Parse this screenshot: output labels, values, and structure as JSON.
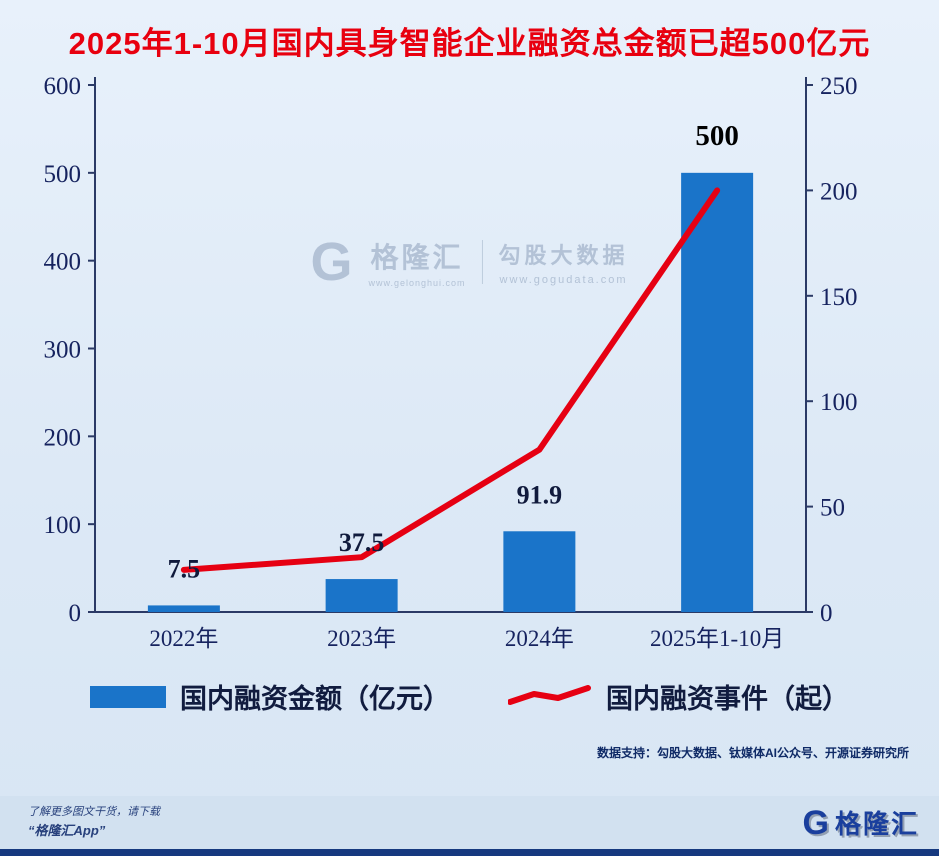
{
  "title": "2025年1-10月国内具身智能企业融资总金额已超500亿元",
  "chart_data": {
    "type": "bar+line",
    "title": "2025年1-10月国内具身智能企业融资总金额已超500亿元",
    "categories": [
      "2022年",
      "2023年",
      "2024年",
      "2025年1-10月"
    ],
    "series": [
      {
        "name": "国内融资金额（亿元）",
        "type": "bar",
        "axis": "left",
        "values": [
          7.5,
          37.5,
          91.9,
          500
        ],
        "labels": [
          "7.5",
          "37.5",
          "91.9",
          "500"
        ],
        "color": "#1a74c9"
      },
      {
        "name": "国内融资事件（起）",
        "type": "line",
        "axis": "right",
        "values": [
          20,
          26,
          77,
          200
        ],
        "color": "#e60012"
      }
    ],
    "left_axis": {
      "min": 0,
      "max": 600,
      "ticks": [
        0,
        100,
        200,
        300,
        400,
        500,
        600
      ]
    },
    "right_axis": {
      "min": 0,
      "max": 250,
      "ticks": [
        0,
        50,
        100,
        150,
        200,
        250
      ]
    },
    "grid": false,
    "legend_position": "bottom"
  },
  "watermark": {
    "logo_letter": "G",
    "brand": "格隆汇",
    "brand_url": "www.gelonghui.com",
    "divider": "|",
    "product": "勾股大数据",
    "product_url": "www.gogudata.com"
  },
  "footer": {
    "source": "数据支持：勾股大数据、钛媒体AI公众号、开源证券研究所",
    "promo_line1": "了解更多图文干货，请下载",
    "promo_line2": "“格隆汇App”",
    "logo_letter": "G",
    "logo_text": "格隆汇"
  }
}
